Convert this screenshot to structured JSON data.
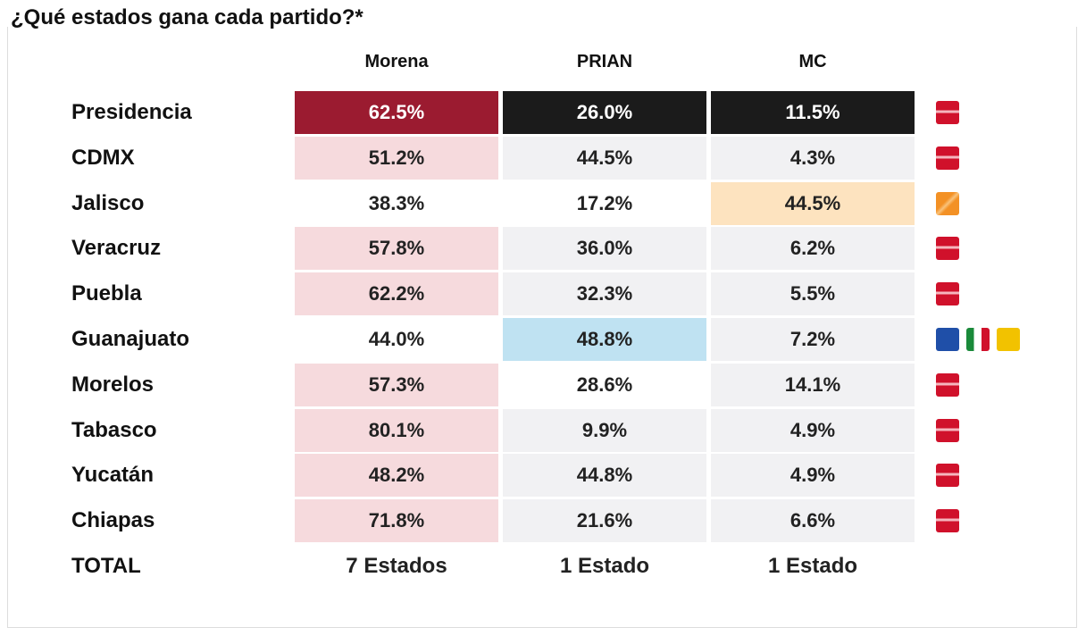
{
  "title": "¿Qué estados gana cada partido?*",
  "columns": [
    "Morena",
    "PRIAN",
    "MC"
  ],
  "rows": [
    [
      "Presidencia",
      "62.5%",
      "26.0%",
      "11.5%"
    ],
    [
      "CDMX",
      "51.2%",
      "44.5%",
      "4.3%"
    ],
    [
      "Jalisco",
      "38.3%",
      "17.2%",
      "44.5%"
    ],
    [
      "Veracruz",
      "57.8%",
      "36.0%",
      "6.2%"
    ],
    [
      "Puebla",
      "62.2%",
      "32.3%",
      "5.5%"
    ],
    [
      "Guanajuato",
      "44.0%",
      "48.8%",
      "7.2%"
    ],
    [
      "Morelos",
      "57.3%",
      "28.6%",
      "14.1%"
    ],
    [
      "Tabasco",
      "80.1%",
      "9.9%",
      "4.9%"
    ],
    [
      "Yucatán",
      "48.2%",
      "44.8%",
      "4.9%"
    ],
    [
      "Chiapas",
      "71.8%",
      "21.6%",
      "6.6%"
    ],
    [
      "TOTAL",
      "7 Estados",
      "1 Estado",
      "1 Estado"
    ]
  ]
}
